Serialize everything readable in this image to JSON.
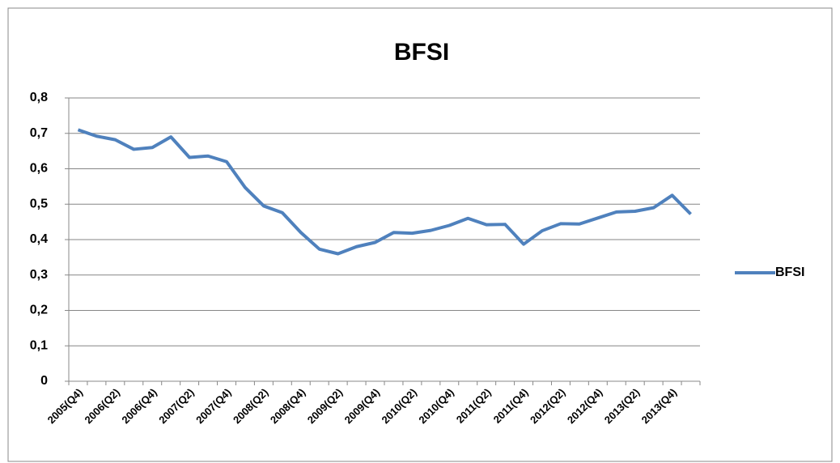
{
  "chart_data": {
    "type": "line",
    "title": "BFSI",
    "categories": [
      "2005(Q4)",
      null,
      "2006(Q2)",
      null,
      "2006(Q4)",
      null,
      "2007(Q2)",
      null,
      "2007(Q4)",
      null,
      "2008(Q2)",
      null,
      "2008(Q4)",
      null,
      "2009(Q2)",
      null,
      "2009(Q4)",
      null,
      "2010(Q2)",
      null,
      "2010(Q4)",
      null,
      "2011(Q2)",
      null,
      "2011(Q4)",
      null,
      "2012(Q2)",
      null,
      "2012(Q4)",
      null,
      "2013(Q2)",
      null,
      "2013(Q4)",
      null
    ],
    "series": [
      {
        "name": "BFSI",
        "color": "#4f81bd",
        "values": [
          0.71,
          0.692,
          0.682,
          0.655,
          0.66,
          0.69,
          0.632,
          0.636,
          0.62,
          0.547,
          0.495,
          0.476,
          0.42,
          0.373,
          0.36,
          0.38,
          0.392,
          0.42,
          0.418,
          0.426,
          0.44,
          0.46,
          0.442,
          0.443,
          0.387,
          0.425,
          0.445,
          0.444,
          0.461,
          0.478,
          0.48,
          0.49,
          0.525,
          0.472
        ]
      }
    ],
    "ylim": [
      0,
      0.8
    ],
    "yticks": [
      0,
      {
        "value": 0.1,
        "label": "0,1"
      },
      {
        "value": 0.2,
        "label": "0,2"
      },
      {
        "value": 0.3,
        "label": "0,3"
      },
      {
        "value": 0.4,
        "label": "0,4"
      },
      {
        "value": 0.5,
        "label": "0,5"
      },
      {
        "value": 0.6,
        "label": "0,6"
      },
      {
        "value": 0.7,
        "label": "0,7"
      },
      {
        "value": 0.8,
        "label": "0,8"
      }
    ],
    "grid": true,
    "legend": "right"
  }
}
